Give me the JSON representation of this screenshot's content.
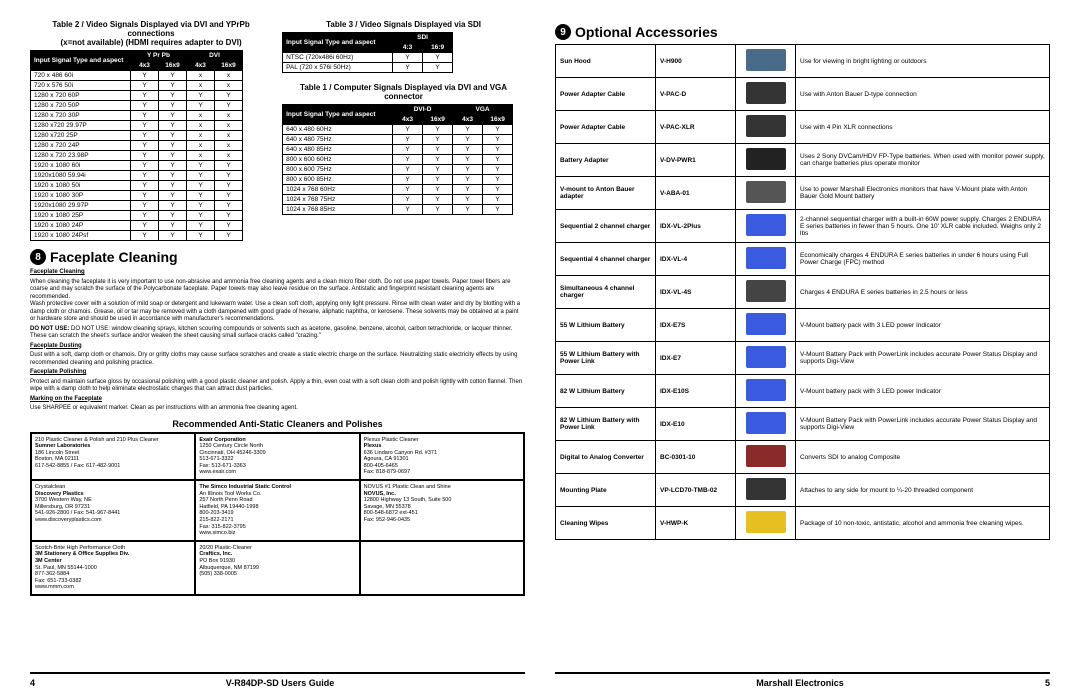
{
  "footer": {
    "guide": "V-R84DP-SD Users Guide",
    "company": "Marshall Electronics",
    "pg_left": "4",
    "pg_right": "5"
  },
  "table2": {
    "caption": "Table 2 / Video Signals Displayed via DVI and YPrPb connections\n(x=not available) (HDMI requires adapter to DVI)",
    "head_group": [
      "Y Pr Pb",
      "DVI"
    ],
    "head_label": "Input Signal Type\nand aspect",
    "head_cols": [
      "4x3",
      "16x9",
      "4x3",
      "16x9"
    ],
    "rows": [
      [
        "720 x 486 60i",
        "Y",
        "Y",
        "x",
        "x"
      ],
      [
        "720 x 576 50i",
        "Y",
        "Y",
        "x",
        "x"
      ],
      [
        "1280 x 720 60P",
        "Y",
        "Y",
        "Y",
        "Y"
      ],
      [
        "1280 x 720 50P",
        "Y",
        "Y",
        "Y",
        "Y"
      ],
      [
        "1280 x 720 30P",
        "Y",
        "Y",
        "x",
        "x"
      ],
      [
        "1280 x720 29.97P",
        "Y",
        "Y",
        "x",
        "x"
      ],
      [
        "1280 x720 25P",
        "Y",
        "Y",
        "x",
        "x"
      ],
      [
        "1280 x 720 24P",
        "Y",
        "Y",
        "x",
        "x"
      ],
      [
        "1280 x 720 23.98P",
        "Y",
        "Y",
        "x",
        "x"
      ],
      [
        "1920 x 1080 60i",
        "Y",
        "Y",
        "Y",
        "Y"
      ],
      [
        "1920x1080 59.94i",
        "Y",
        "Y",
        "Y",
        "Y"
      ],
      [
        "1920 x 1080 50i",
        "Y",
        "Y",
        "Y",
        "Y"
      ],
      [
        "1920 x 1080 30P",
        "Y",
        "Y",
        "Y",
        "Y"
      ],
      [
        "1920x1080 29.97P",
        "Y",
        "Y",
        "Y",
        "Y"
      ],
      [
        "1920 x 1080 25P",
        "Y",
        "Y",
        "Y",
        "Y"
      ],
      [
        "1920 x 1080 24P",
        "Y",
        "Y",
        "Y",
        "Y"
      ],
      [
        "1920 x 1080 24Psf",
        "Y",
        "Y",
        "Y",
        "Y"
      ]
    ]
  },
  "table3": {
    "caption": "Table 3 / Video Signals Displayed via SDI",
    "head_group": "SDI",
    "head_label": "Input Signal Type and aspect",
    "head_cols": [
      "4:3",
      "16:9"
    ],
    "rows": [
      [
        "NTSC (720x486i 60Hz)",
        "Y",
        "Y"
      ],
      [
        "PAL (720 x 576i 50Hz)",
        "Y",
        "Y"
      ]
    ]
  },
  "table1": {
    "caption": "Table 1 / Computer Signals Displayed via DVI and VGA connector",
    "head_group": [
      "DVI-D",
      "VGA"
    ],
    "head_label": "Input Signal Type\nand aspect",
    "head_cols": [
      "4x3",
      "16x9",
      "4x3",
      "16x9"
    ],
    "rows": [
      [
        "640 x 480 60Hz",
        "Y",
        "Y",
        "Y",
        "Y"
      ],
      [
        "640 x 480 75Hz",
        "Y",
        "Y",
        "Y",
        "Y"
      ],
      [
        "640 x 480 85Hz",
        "Y",
        "Y",
        "Y",
        "Y"
      ],
      [
        "800 x 600 60Hz",
        "Y",
        "Y",
        "Y",
        "Y"
      ],
      [
        "800 x 600 75Hz",
        "Y",
        "Y",
        "Y",
        "Y"
      ],
      [
        "800 x 600 85Hz",
        "Y",
        "Y",
        "Y",
        "Y"
      ],
      [
        "1024 x 768 60Hz",
        "Y",
        "Y",
        "Y",
        "Y"
      ],
      [
        "1024 x 768 75Hz",
        "Y",
        "Y",
        "Y",
        "Y"
      ],
      [
        "1024 x 768 85Hz",
        "Y",
        "Y",
        "Y",
        "Y"
      ]
    ]
  },
  "section8": {
    "num": "8",
    "title": "Faceplate Cleaning",
    "h1": "Faceplate Cleaning",
    "p1": "When cleaning the faceplate it is very important to use non-abrasive and ammonia free cleaning agents and a clean micro fiber cloth. Do not use paper towels. Paper towel fibers are coarse and may scratch the surface of the Polycarbonate faceplate. Paper towels may also leave residue on the surface. Antistatic and fingerprint resistant cleaning agents are recommended.\nWash protective cover with a solution of mild soap or detergent and lukewarm water. Use a clean soft cloth, applying only light pressure. Rinse with clean water and dry by blotting with a damp cloth or chamois. Grease, oil or tar may be removed with a cloth dampened with good grade of hexane, aliphatic naphtha, or kerosene. These solvents may be obtained at a paint or hardware store and should be used in accordance with manufacturer's recommendations.",
    "p2": "DO NOT USE: window cleaning sprays, kitchen scouring compounds or solvents such as acetone, gasoline, benzene, alcohol, carbon tetrachloride, or lacquer thinner. These can scratch the sheet's surface and/or weaken the sheet causing small surface cracks called \"crazing.\"",
    "h2": "Faceplate Dusting",
    "p3": "Dust with a soft, damp cloth or chamois. Dry or gritty cloths may cause surface scratches and create a static electric charge on the surface. Neutralizing static electricity effects by using recommended cleaning and polishing practice.",
    "h3": "Faceplate Polishing",
    "p4": "Protect and maintain surface gloss by occasional polishing with a good plastic cleaner and polish. Apply a thin, even coat with a soft clean cloth and polish lightly with cotton flannel. Then wipe with a damp cloth to help eliminate electrostatic charges that can attract dust particles.",
    "h4": "Marking on the Faceplate",
    "p5": "Use SHARPEE or equivalent marker. Clean as per instructions with an ammonia free cleaning agent.",
    "subhead": "Recommended Anti-Static Cleaners and Polishes",
    "suppliers": [
      [
        "210 Plastic Cleaner & Polish and 210 Plus Cleaner\n<b>Sumner Laboratories</b>\n186 Lincoln Street\nBoston, MA 02111\n617-542-8855 / Fax: 617-482-9001",
        "<b>Exair Corporation</b>\n1250 Century Circle North\nCincinnati, OH 45246-3309\n513-671-3322\nFax: 513-671-3363\nwww.exair.com",
        "Plexus Plastic Cleaner\n<b>Plexus</b>\n636 Lindaro Canyon Rd. #371\nAgoura, CA 91301\n800-405-6465\nFax: 818-879-0697"
      ],
      [
        "Crystalclean\n<b>Discovery Plastics</b>\n3700 Western Way, NE\nMillersburg, OR 97231\n541-926-2800 / Fax: 541-967-8441\nwww.discoveryplastics.com",
        "<b>The Simco Industrial Static Control</b>\nAn Illinois Tool Works Co.\n257 North Penn Road\nHatfield, PA 19440-1998\n800-203-3419\n215-822-2171\nFax: 315-822-3795\nwww.simco.biz",
        "NOVUS #1 Plastic Clean and Shine\n<b>NOVUS, Inc.</b>\n12800 Highway 13 South, Suite 500\nSavage, MN 55378\n800-548-6872 ext-451\nFax: 952-946-0435"
      ],
      [
        "Scotch-Brite High Performance Cloth\n<b>3M Stationery & Office Supplies Div.\n3M Center</b>\nSt. Paul, MN 55144-1000\n877-362-5884\nFax: 651-733-0382\nwww.mmm.com",
        "20/20 Plastic-Cleaner\n<b>Craftics, Inc.</b>\nPO Box 91930\nAlbuquerque, NM 87199\n(505) 338-0005",
        ""
      ]
    ]
  },
  "section9": {
    "num": "9",
    "title": "Optional Accessories",
    "rows": [
      [
        "Sun Hood",
        "V-H900",
        "#4a6a8a",
        "Use for viewing in bright lighting or outdoors"
      ],
      [
        "Power Adapter Cable",
        "V-PAC-D",
        "#333",
        "Use with Anton Bauer D-type connection"
      ],
      [
        "Power Adapter Cable",
        "V-PAC-XLR",
        "#333",
        "Use with 4 Pin XLR connections"
      ],
      [
        "Battery Adapter",
        "V-DV-PWR1",
        "#222",
        "Uses 2 Sony DVCam/HDV FP-Type batteries. When used with monitor power supply, can charge batteries plus operate monitor"
      ],
      [
        "V-mount to Anton Bauer adapter",
        "V-ABA-01",
        "#555",
        "Use to power Marshall Electronics monitors that have V-Mount plate with Anton Bauer Gold Mount battery"
      ],
      [
        "Sequential 2 channel charger",
        "IDX-VL-2Plus",
        "#3a5adf",
        "2-channel sequential charger with a built-in 60W power supply. Charges 2 ENDURA E series batteries in fewer than 5 hours. One 10' XLR cable included. Weighs only 2 lbs"
      ],
      [
        "Sequential 4 channel charger",
        "IDX-VL-4",
        "#3a5adf",
        "Economically charges 4 ENDURA E series batteries in under 6 hours using Full Power Charge (FPC) method"
      ],
      [
        "Simultaneous 4 channel charger",
        "IDX-VL-4S",
        "#444",
        "Charges 4 ENDURA E series batteries in 2.5 hours or less"
      ],
      [
        "55 W Lithium Battery",
        "IDX-E7S",
        "#3a5adf",
        "V-Mount battery pack with 3 LED power Indicator"
      ],
      [
        "55 W Lithium Battery with Power Link",
        "IDX-E7",
        "#3a5adf",
        "V-Mount Battery Pack with PowerLink includes accurate Power Status Display and supports Digi-View"
      ],
      [
        "82 W Lithium Battery",
        "IDX-E10S",
        "#3a5adf",
        "V-Mount battery pack with 3 LED power Indicator"
      ],
      [
        "82 W Lithium Battery with Power Link",
        "IDX-E10",
        "#3a5adf",
        "V-Mount Battery Pack with PowerLink includes accurate Power Status Display and supports Digi-View"
      ],
      [
        "Digital to Analog Converter",
        "BC-0301-10",
        "#8a2a2a",
        "Converts SDI to analog Composite"
      ],
      [
        "Mounting Plate",
        "VP-LCD70-TMB-02",
        "#333",
        "Attaches to any side for mount to ¼-20 threaded component"
      ],
      [
        "Cleaning Wipes",
        "V-HWP-K",
        "#e5c020",
        "Package of 10 non-toxic, antistatic, alcohol and ammonia free cleaning wipes."
      ]
    ]
  }
}
